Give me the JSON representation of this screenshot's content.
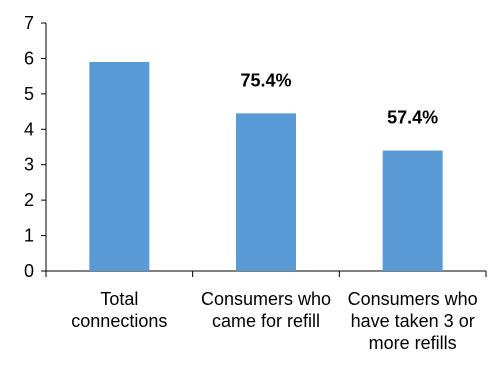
{
  "chart_data": {
    "type": "bar",
    "categories": [
      [
        "Total",
        "connections"
      ],
      [
        "Consumers who",
        "came for refill"
      ],
      [
        "Consumers who",
        "have taken 3 or",
        "more refills"
      ]
    ],
    "values": [
      5.9,
      4.45,
      3.4
    ],
    "data_labels": [
      "",
      "75.4%",
      "57.4%"
    ],
    "ylim": [
      0,
      7
    ],
    "yticks": [
      "0",
      "1",
      "2",
      "3",
      "4",
      "5",
      "6",
      "7"
    ],
    "grid": false,
    "legend": "none",
    "title": "",
    "xlabel": "",
    "ylabel": "",
    "colors": {
      "bar": "#5b9bd5",
      "axis": "#000000"
    }
  }
}
